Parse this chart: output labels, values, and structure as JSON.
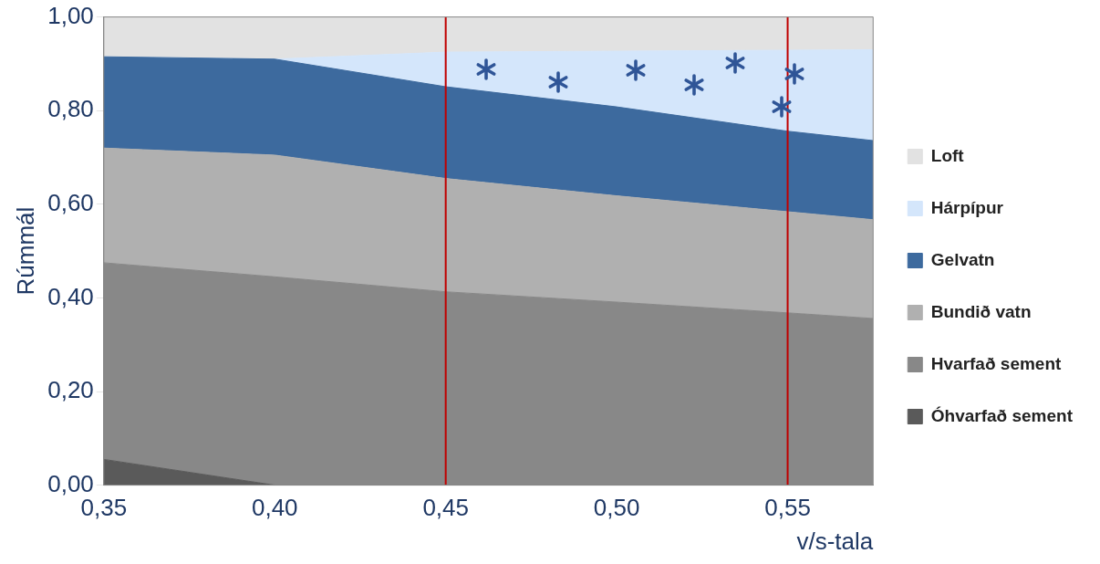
{
  "chart_data": {
    "type": "area",
    "xlabel": "v/s-tala",
    "ylabel": "Rúmmál",
    "x": [
      0.35,
      0.4,
      0.45,
      0.5,
      0.55,
      0.575
    ],
    "xlim": [
      0.35,
      0.575
    ],
    "xticks": [
      {
        "value": 0.35,
        "label": "0,35"
      },
      {
        "value": 0.4,
        "label": "0,40"
      },
      {
        "value": 0.45,
        "label": "0,45"
      },
      {
        "value": 0.5,
        "label": "0,50"
      },
      {
        "value": 0.55,
        "label": "0,55"
      }
    ],
    "ylim": [
      0,
      1
    ],
    "yticks": [
      {
        "value": 0,
        "label": "0,00"
      },
      {
        "value": 0.2,
        "label": "0,20"
      },
      {
        "value": 0.4,
        "label": "0,40"
      },
      {
        "value": 0.6,
        "label": "0,60"
      },
      {
        "value": 0.8,
        "label": "0,80"
      },
      {
        "value": 1,
        "label": "1,00"
      }
    ],
    "stacked": true,
    "legend": "right",
    "series": [
      {
        "name": "Óhvarfað sement",
        "color": "#5a5a5a",
        "values": [
          0.055,
          0,
          0,
          0,
          0,
          0
        ]
      },
      {
        "name": "Hvarfað sement",
        "color": "#888888",
        "values": [
          0.42,
          0.445,
          0.413,
          0.391,
          0.368,
          0.356
        ]
      },
      {
        "name": "Bundið vatn",
        "color": "#b0b0b0",
        "values": [
          0.245,
          0.26,
          0.242,
          0.227,
          0.216,
          0.211
        ]
      },
      {
        "name": "Gelvatn",
        "color": "#3d6a9e",
        "values": [
          0.195,
          0.205,
          0.196,
          0.19,
          0.172,
          0.169
        ]
      },
      {
        "name": "Hárpípur",
        "color": "#d4e6fb",
        "values": [
          0,
          0,
          0.074,
          0.119,
          0.173,
          0.194
        ]
      },
      {
        "name": "Loft",
        "color": "#e2e2e2",
        "values": [
          0.085,
          0.09,
          0.075,
          0.073,
          0.071,
          0.07
        ]
      }
    ],
    "ref_lines": [
      {
        "axis": "x",
        "value": 0.45,
        "color": "#c00000"
      },
      {
        "axis": "x",
        "value": 0.55,
        "color": "#c00000"
      }
    ]
  }
}
